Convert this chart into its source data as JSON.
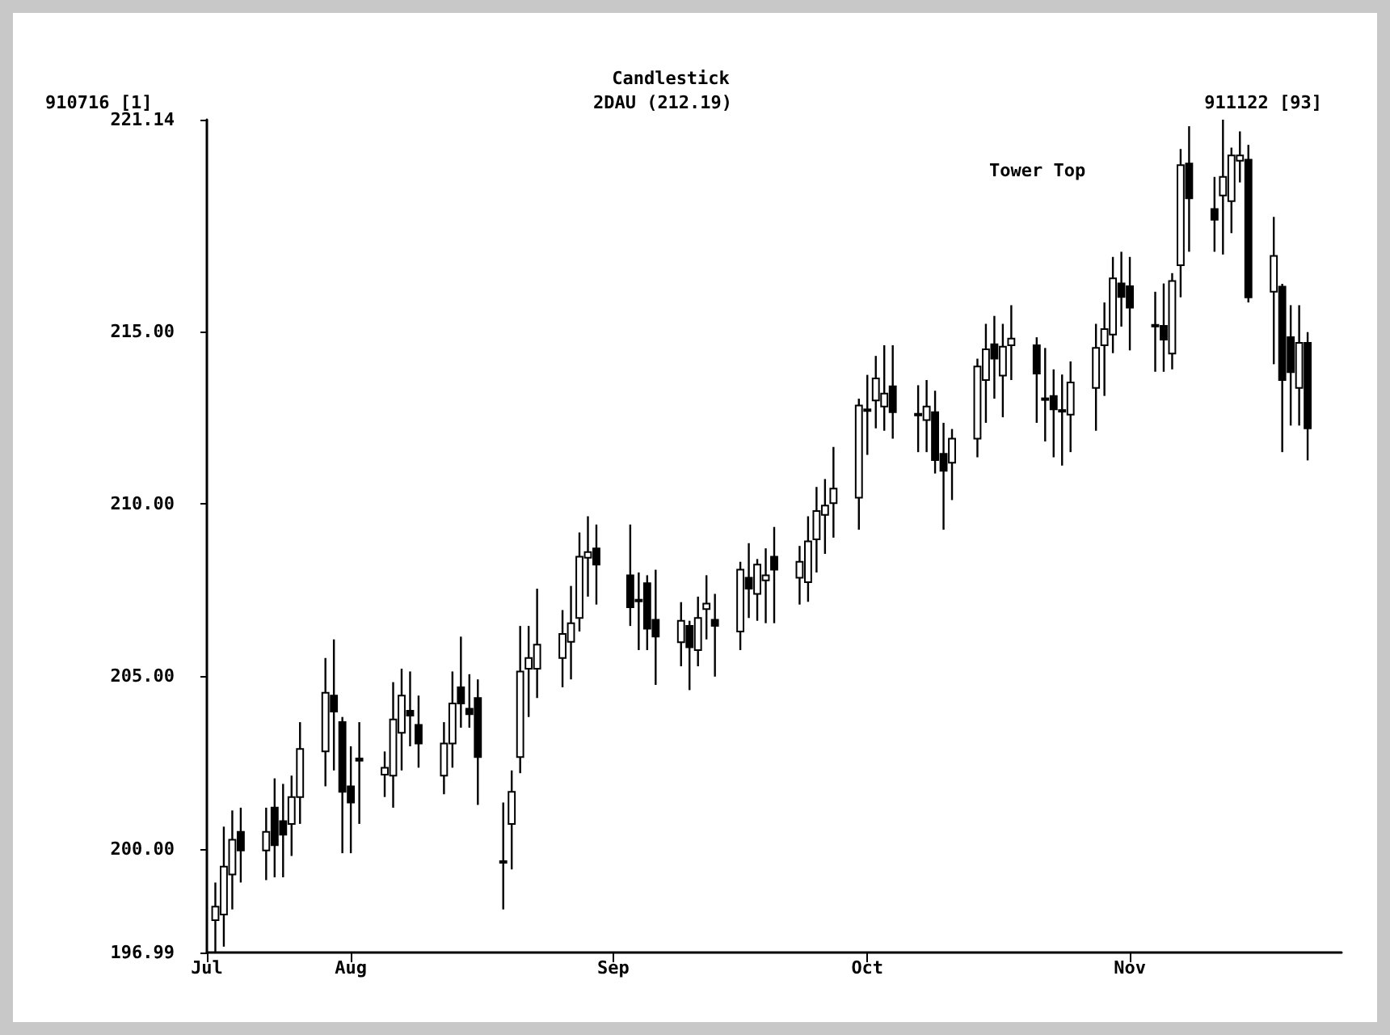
{
  "chart_data": {
    "type": "candlestick",
    "title": "Candlestick",
    "color": "#000000",
    "annotations": [
      "910716 [1]",
      "2DAU (212.19)",
      "911122 [93]",
      "Tower Top"
    ],
    "x": [
      "--07-16",
      "--07-17",
      "--07-18",
      "--07-19",
      "--07-22",
      "--07-23",
      "--07-24",
      "--07-25",
      "--07-26",
      "--07-29",
      "--07-30",
      "--07-31",
      "--08-01",
      "--08-02",
      "--08-05",
      "--08-06",
      "--08-07",
      "--08-08",
      "--08-09",
      "--08-12",
      "--08-13",
      "--08-14",
      "--08-15",
      "--08-16",
      "--08-19",
      "--08-20",
      "--08-21",
      "--08-22",
      "--08-23",
      "--08-26",
      "--08-27",
      "--08-28",
      "--08-29",
      "--08-30",
      "--09-03",
      "--09-04",
      "--09-05",
      "--09-06",
      "--09-09",
      "--09-10",
      "--09-11",
      "--09-12",
      "--09-13",
      "--09-16",
      "--09-17",
      "--09-18",
      "--09-19",
      "--09-20",
      "--09-23",
      "--09-24",
      "--09-25",
      "--09-26",
      "--09-27",
      "--09-30",
      "--10-01",
      "--10-02",
      "--10-03",
      "--10-04",
      "--10-07",
      "--10-08",
      "--10-09",
      "--10-10",
      "--10-11",
      "--10-14",
      "--10-15",
      "--10-16",
      "--10-17",
      "--10-18",
      "--10-21",
      "--10-22",
      "--10-23",
      "--10-24",
      "--10-25",
      "--10-28",
      "--10-29",
      "--10-30",
      "--10-31",
      "--11-01",
      "--11-04",
      "--11-05",
      "--11-06",
      "--11-07",
      "--11-08",
      "--11-11",
      "--11-12",
      "--11-13",
      "--11-14",
      "--11-15",
      "--11-18",
      "--11-19",
      "--11-20",
      "--11-21",
      "--11-22"
    ],
    "xlim": [
      "--07-15",
      "--11-26"
    ],
    "xticks": [
      {
        "value": "--07-15",
        "label": "Jul"
      },
      {
        "value": "--08-01",
        "label": "Aug"
      },
      {
        "value": "--09-01",
        "label": "Sep"
      },
      {
        "value": "--10-01",
        "label": "Oct"
      },
      {
        "value": "--11-01",
        "label": "Nov"
      }
    ],
    "ylim": [
      196.99,
      221.14
    ],
    "yticks": [
      196.99,
      {
        "value": 200,
        "label": "200.00"
      },
      {
        "value": 205,
        "label": "205.00"
      },
      {
        "value": 210,
        "label": "210.00"
      },
      {
        "value": 215,
        "label": "215.00"
      },
      221.14
    ],
    "ohlc": [
      [
        197.93,
        199.02,
        197.0,
        198.32
      ],
      [
        198.09,
        200.64,
        197.16,
        199.48
      ],
      [
        199.25,
        201.11,
        198.24,
        200.26
      ],
      [
        200.49,
        201.19,
        199.02,
        199.95
      ],
      [
        199.95,
        201.19,
        199.09,
        200.49
      ],
      [
        201.19,
        202.04,
        199.17,
        200.1
      ],
      [
        200.8,
        201.88,
        199.17,
        200.41
      ],
      [
        200.72,
        202.12,
        199.79,
        201.5
      ],
      [
        201.5,
        203.67,
        200.72,
        202.89
      ],
      [
        202.82,
        205.53,
        201.81,
        204.52
      ],
      [
        204.44,
        206.07,
        202.27,
        203.98
      ],
      [
        203.67,
        203.82,
        199.87,
        201.65
      ],
      [
        201.81,
        202.97,
        199.87,
        201.34
      ],
      [
        202.62,
        203.67,
        200.72,
        202.55
      ],
      [
        202.15,
        202.82,
        201.5,
        202.35
      ],
      [
        202.12,
        204.83,
        201.19,
        203.75
      ],
      [
        203.36,
        205.22,
        202.27,
        204.44
      ],
      [
        204.0,
        205.14,
        202.97,
        203.86
      ],
      [
        203.59,
        204.44,
        202.35,
        203.05
      ],
      [
        202.12,
        203.67,
        201.58,
        203.05
      ],
      [
        203.05,
        205.14,
        202.35,
        204.21
      ],
      [
        204.68,
        206.15,
        203.51,
        204.21
      ],
      [
        204.06,
        205.06,
        203.51,
        203.9
      ],
      [
        204.37,
        204.91,
        201.27,
        202.66
      ],
      [
        199.64,
        201.34,
        198.24,
        199.6
      ],
      [
        200.72,
        202.27,
        199.4,
        201.65
      ],
      [
        202.66,
        206.46,
        202.19,
        205.14
      ],
      [
        205.22,
        206.46,
        203.82,
        205.53
      ],
      [
        205.22,
        207.54,
        204.37,
        205.92
      ],
      [
        205.53,
        206.92,
        204.68,
        206.23
      ],
      [
        206.0,
        207.62,
        204.91,
        206.54
      ],
      [
        206.69,
        209.17,
        206.3,
        208.47
      ],
      [
        208.44,
        209.64,
        207.31,
        208.6
      ],
      [
        208.71,
        209.4,
        207.08,
        208.24
      ],
      [
        207.93,
        209.4,
        206.46,
        207.0
      ],
      [
        207.22,
        208.01,
        205.76,
        207.19
      ],
      [
        207.7,
        207.93,
        205.76,
        206.38
      ],
      [
        206.64,
        208.09,
        204.75,
        206.15
      ],
      [
        205.99,
        207.15,
        205.29,
        206.61
      ],
      [
        206.46,
        206.61,
        204.6,
        205.84
      ],
      [
        205.76,
        207.31,
        205.29,
        206.69
      ],
      [
        206.95,
        207.93,
        206.07,
        207.11
      ],
      [
        206.64,
        207.39,
        204.99,
        206.46
      ],
      [
        206.3,
        208.32,
        205.76,
        208.09
      ],
      [
        207.86,
        208.86,
        206.69,
        207.54
      ],
      [
        207.39,
        208.4,
        206.61,
        208.24
      ],
      [
        207.78,
        208.71,
        206.54,
        207.93
      ],
      [
        208.47,
        209.33,
        206.54,
        208.09
      ],
      [
        207.86,
        208.78,
        207.08,
        208.32
      ],
      [
        207.73,
        209.64,
        207.16,
        208.91
      ],
      [
        208.97,
        210.49,
        208.01,
        209.79
      ],
      [
        209.68,
        210.72,
        208.55,
        209.95
      ],
      [
        210.02,
        211.65,
        209.02,
        210.44
      ],
      [
        210.18,
        213.05,
        209.25,
        212.85
      ],
      [
        212.74,
        213.74,
        211.42,
        212.7
      ],
      [
        213.0,
        214.29,
        212.19,
        213.64
      ],
      [
        212.82,
        214.6,
        212.12,
        213.2
      ],
      [
        213.41,
        214.6,
        211.89,
        212.66
      ],
      [
        212.61,
        213.44,
        211.5,
        212.58
      ],
      [
        212.43,
        213.59,
        211.5,
        212.82
      ],
      [
        212.66,
        213.28,
        210.88,
        211.27
      ],
      [
        211.45,
        212.35,
        209.25,
        210.96
      ],
      [
        211.19,
        212.17,
        210.11,
        211.89
      ],
      [
        211.89,
        214.21,
        211.35,
        213.98
      ],
      [
        213.59,
        215.22,
        212.35,
        214.48
      ],
      [
        214.63,
        215.45,
        213.05,
        214.21
      ],
      [
        213.72,
        215.22,
        212.51,
        214.56
      ],
      [
        214.6,
        215.76,
        213.59,
        214.79
      ],
      [
        214.6,
        214.83,
        212.35,
        213.78
      ],
      [
        213.06,
        214.52,
        211.81,
        213.03
      ],
      [
        213.13,
        213.9,
        211.35,
        212.74
      ],
      [
        212.72,
        213.75,
        211.11,
        212.69
      ],
      [
        212.59,
        214.13,
        211.5,
        213.52
      ],
      [
        213.36,
        215.22,
        212.12,
        214.52
      ],
      [
        214.6,
        215.84,
        213.13,
        215.07
      ],
      [
        214.91,
        217.16,
        214.37,
        216.54
      ],
      [
        216.39,
        217.31,
        215.14,
        216.0
      ],
      [
        216.31,
        217.16,
        214.45,
        215.69
      ],
      [
        215.19,
        216.15,
        213.83,
        215.16
      ],
      [
        215.16,
        216.39,
        213.83,
        214.76
      ],
      [
        214.36,
        216.69,
        213.9,
        216.46
      ],
      [
        216.92,
        220.29,
        215.99,
        219.82
      ],
      [
        219.87,
        220.95,
        217.31,
        218.86
      ],
      [
        218.55,
        219.48,
        217.31,
        218.24
      ],
      [
        218.94,
        221.14,
        217.23,
        219.48
      ],
      [
        218.78,
        220.33,
        217.85,
        220.1
      ],
      [
        219.95,
        220.8,
        219.32,
        220.1
      ],
      [
        219.98,
        220.41,
        215.84,
        215.99
      ],
      [
        216.15,
        218.32,
        214.05,
        217.19
      ],
      [
        216.3,
        216.38,
        211.5,
        213.59
      ],
      [
        214.83,
        215.76,
        212.27,
        213.82
      ],
      [
        213.36,
        215.76,
        212.27,
        214.67
      ],
      [
        214.67,
        214.98,
        211.26,
        212.19
      ]
    ]
  }
}
